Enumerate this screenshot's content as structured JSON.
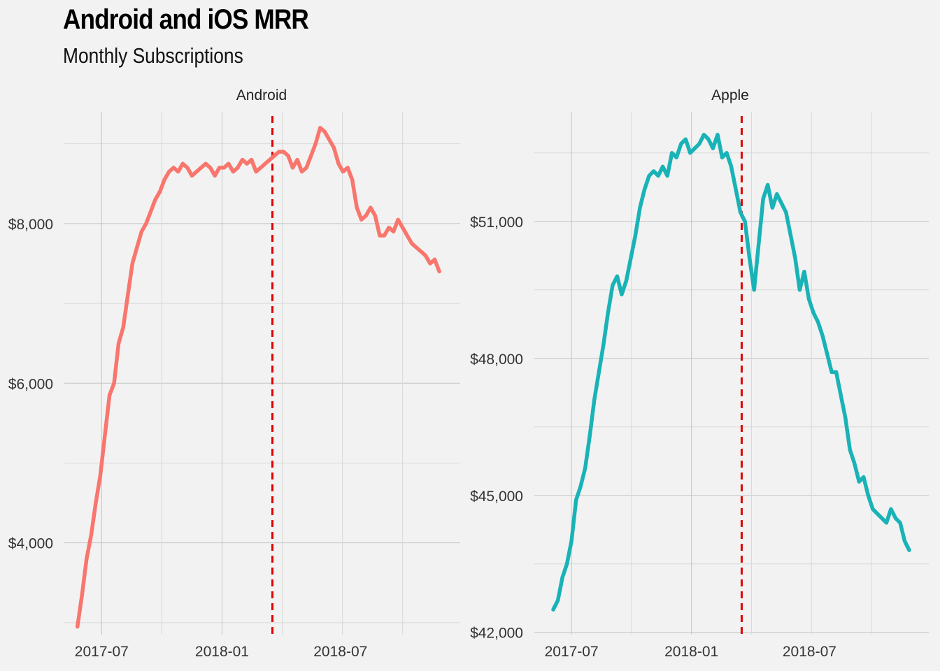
{
  "title": "Android and iOS MRR",
  "subtitle": "Monthly Subscriptions",
  "chart_data": [
    {
      "type": "line",
      "panel": "Android",
      "color": "#f8766d",
      "x_unit": "date",
      "xlim": [
        "2017-05-05",
        "2018-12-31"
      ],
      "x_ticks": [
        "2017-07-01",
        "2018-01-01",
        "2018-07-01"
      ],
      "x_tick_labels": [
        "2017-07",
        "2018-01",
        "2018-07"
      ],
      "ylim": [
        2850,
        9400
      ],
      "y_ticks": [
        4000,
        6000,
        8000
      ],
      "y_tick_labels": [
        "$4,000",
        "$6,000",
        "$8,000"
      ],
      "grid": true,
      "vline": {
        "x": "2018-03-19",
        "color": "#e00000",
        "style": "dashed"
      },
      "x": [
        "2017-05-25",
        "2017-06-01",
        "2017-06-08",
        "2017-06-15",
        "2017-06-22",
        "2017-06-29",
        "2017-07-06",
        "2017-07-13",
        "2017-07-20",
        "2017-07-27",
        "2017-08-03",
        "2017-08-10",
        "2017-08-17",
        "2017-08-24",
        "2017-08-31",
        "2017-09-07",
        "2017-09-14",
        "2017-09-21",
        "2017-09-28",
        "2017-10-05",
        "2017-10-12",
        "2017-10-19",
        "2017-10-26",
        "2017-11-02",
        "2017-11-09",
        "2017-11-16",
        "2017-11-23",
        "2017-11-30",
        "2017-12-07",
        "2017-12-14",
        "2017-12-21",
        "2017-12-28",
        "2018-01-04",
        "2018-01-11",
        "2018-01-18",
        "2018-01-25",
        "2018-02-01",
        "2018-02-08",
        "2018-02-15",
        "2018-02-22",
        "2018-03-01",
        "2018-03-08",
        "2018-03-15",
        "2018-03-22",
        "2018-03-29",
        "2018-04-05",
        "2018-04-12",
        "2018-04-19",
        "2018-04-26",
        "2018-05-03",
        "2018-05-10",
        "2018-05-17",
        "2018-05-24",
        "2018-05-31",
        "2018-06-07",
        "2018-06-14",
        "2018-06-21",
        "2018-06-28",
        "2018-07-05",
        "2018-07-12",
        "2018-07-19",
        "2018-07-26",
        "2018-08-02",
        "2018-08-09",
        "2018-08-16",
        "2018-08-23",
        "2018-08-30",
        "2018-09-06",
        "2018-09-13",
        "2018-09-20",
        "2018-09-27",
        "2018-10-04",
        "2018-10-11",
        "2018-10-18",
        "2018-10-25",
        "2018-11-01",
        "2018-11-08",
        "2018-11-15",
        "2018-11-22",
        "2018-11-29"
      ],
      "values": [
        2950,
        3350,
        3800,
        4100,
        4500,
        4850,
        5350,
        5850,
        6000,
        6500,
        6700,
        7100,
        7500,
        7700,
        7900,
        8000,
        8150,
        8300,
        8400,
        8550,
        8650,
        8700,
        8650,
        8750,
        8700,
        8600,
        8650,
        8700,
        8750,
        8700,
        8600,
        8700,
        8700,
        8750,
        8650,
        8700,
        8800,
        8750,
        8800,
        8650,
        8700,
        8750,
        8800,
        8850,
        8900,
        8900,
        8850,
        8700,
        8800,
        8650,
        8700,
        8850,
        9000,
        9200,
        9150,
        9050,
        8950,
        8750,
        8650,
        8700,
        8550,
        8200,
        8050,
        8100,
        8200,
        8100,
        7850,
        7850,
        7950,
        7900,
        8050,
        7950,
        7850,
        7750,
        7700,
        7650,
        7600,
        7500,
        7550,
        7400
      ]
    },
    {
      "type": "line",
      "panel": "Apple",
      "color": "#19b3b7",
      "x_unit": "date",
      "xlim": [
        "2017-05-05",
        "2018-12-31"
      ],
      "x_ticks": [
        "2017-07-01",
        "2018-01-01",
        "2018-07-01"
      ],
      "x_tick_labels": [
        "2017-07",
        "2018-01",
        "2018-07"
      ],
      "ylim": [
        41950,
        53400
      ],
      "y_ticks": [
        42000,
        45000,
        48000,
        51000
      ],
      "y_tick_labels": [
        "$42,000",
        "$45,000",
        "$48,000",
        "$51,000"
      ],
      "grid": true,
      "vline": {
        "x": "2018-03-19",
        "color": "#e00000",
        "style": "dashed"
      },
      "x": [
        "2017-06-03",
        "2017-06-10",
        "2017-06-17",
        "2017-06-24",
        "2017-07-01",
        "2017-07-08",
        "2017-07-15",
        "2017-07-22",
        "2017-07-29",
        "2017-08-05",
        "2017-08-12",
        "2017-08-19",
        "2017-08-26",
        "2017-09-02",
        "2017-09-09",
        "2017-09-16",
        "2017-09-23",
        "2017-09-30",
        "2017-10-07",
        "2017-10-14",
        "2017-10-21",
        "2017-10-28",
        "2017-11-04",
        "2017-11-11",
        "2017-11-18",
        "2017-11-25",
        "2017-12-02",
        "2017-12-09",
        "2017-12-16",
        "2017-12-23",
        "2017-12-30",
        "2018-01-06",
        "2018-01-13",
        "2018-01-20",
        "2018-01-27",
        "2018-02-03",
        "2018-02-10",
        "2018-02-17",
        "2018-02-24",
        "2018-03-03",
        "2018-03-10",
        "2018-03-17",
        "2018-03-24",
        "2018-03-31",
        "2018-04-07",
        "2018-04-14",
        "2018-04-21",
        "2018-04-28",
        "2018-05-05",
        "2018-05-12",
        "2018-05-19",
        "2018-05-26",
        "2018-06-02",
        "2018-06-09",
        "2018-06-16",
        "2018-06-23",
        "2018-06-30",
        "2018-07-07",
        "2018-07-14",
        "2018-07-21",
        "2018-07-28",
        "2018-08-04",
        "2018-08-11",
        "2018-08-18",
        "2018-08-25",
        "2018-09-01",
        "2018-09-08",
        "2018-09-15",
        "2018-09-22",
        "2018-09-29",
        "2018-10-06",
        "2018-10-13",
        "2018-10-20",
        "2018-10-27",
        "2018-11-03",
        "2018-11-10",
        "2018-11-17",
        "2018-11-24",
        "2018-12-01"
      ],
      "values": [
        42500,
        42700,
        43200,
        43500,
        44000,
        44900,
        45200,
        45600,
        46300,
        47100,
        47700,
        48300,
        49000,
        49600,
        49800,
        49400,
        49700,
        50200,
        50700,
        51300,
        51700,
        52000,
        52100,
        52000,
        52200,
        52000,
        52500,
        52400,
        52700,
        52800,
        52500,
        52600,
        52700,
        52900,
        52800,
        52600,
        52900,
        52400,
        52500,
        52200,
        51700,
        51200,
        51000,
        50200,
        49500,
        50500,
        51500,
        51800,
        51300,
        51600,
        51400,
        51200,
        50700,
        50200,
        49500,
        49900,
        49300,
        49000,
        48800,
        48500,
        48100,
        47700,
        47700,
        47200,
        46700,
        46000,
        45700,
        45300,
        45400,
        45000,
        44700,
        44600,
        44500,
        44400,
        44700,
        44500,
        44400,
        44000,
        43800
      ]
    }
  ]
}
